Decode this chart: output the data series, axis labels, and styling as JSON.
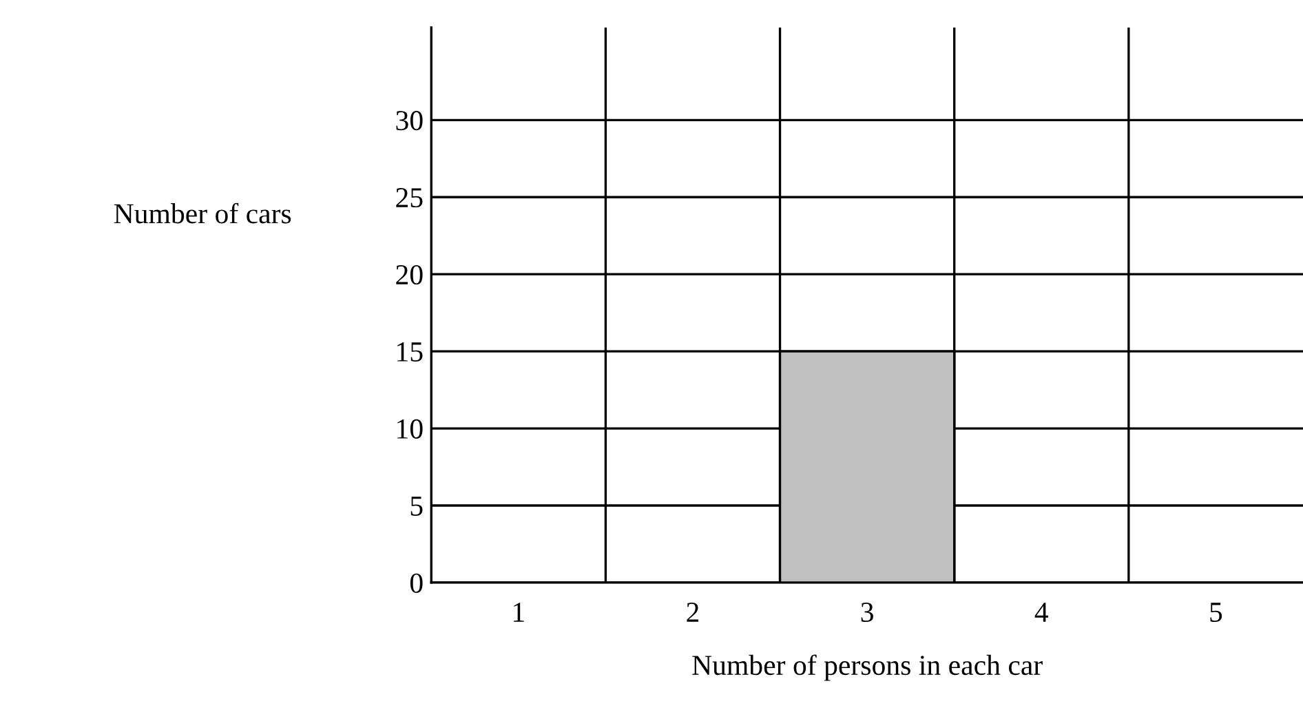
{
  "chart_data": {
    "type": "bar",
    "categories": [
      "1",
      "2",
      "3",
      "4",
      "5"
    ],
    "values": [
      0,
      0,
      15,
      0,
      0
    ],
    "color": "#c0c0c0",
    "xlabel": "Number of persons in each car",
    "ylabel": "Number of cars",
    "ylim": [
      0,
      36
    ],
    "yticks": [
      0,
      5,
      10,
      15,
      20,
      25,
      30
    ],
    "grid": true
  }
}
